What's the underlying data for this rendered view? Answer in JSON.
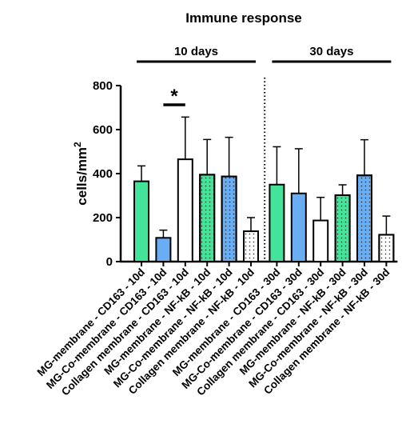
{
  "chart_data": {
    "type": "bar",
    "title": "Immune response",
    "ylabel": "cells/mm",
    "ylabel_superscript": "2",
    "xlabel": "",
    "ylim": [
      0,
      800
    ],
    "yticks": [
      0,
      200,
      400,
      600,
      800
    ],
    "grid": false,
    "legend": "none",
    "groups": [
      {
        "label": "10 days",
        "start": 0,
        "end": 5
      },
      {
        "label": "30 days",
        "start": 6,
        "end": 11
      }
    ],
    "categories": [
      "MG-membrane - CD163 - 10d",
      "MG-Co-membrane - CD163 - 10d",
      "Collagen membrane - CD163 - 10d",
      "MG-membrane - NF-kB - 10d",
      "MG-Co-membrane - NF-kB - 10d",
      "Collagen membrane - NF-kB - 10d",
      "MG-membrane - CD163 - 30d",
      "MG-Co-membrane - CD163 - 30d",
      "Collagen membrane - CD163 - 30d",
      "MG-membrane - NF-kB - 30d",
      "MG-Co-membrane - NF-kB - 30d",
      "Collagen membrane - NF-kB - 30d"
    ],
    "values": [
      365,
      108,
      465,
      395,
      387,
      138,
      350,
      310,
      187,
      302,
      392,
      122
    ],
    "errors": [
      70,
      35,
      192,
      160,
      178,
      62,
      172,
      203,
      105,
      47,
      162,
      85
    ],
    "fills": [
      "#44e39a",
      "#69aef3",
      "#ffffff",
      "#44e39a",
      "#69aef3",
      "#ffffff",
      "#44e39a",
      "#69aef3",
      "#ffffff",
      "#44e39a",
      "#69aef3",
      "#ffffff"
    ],
    "dotted": [
      false,
      false,
      false,
      true,
      true,
      true,
      false,
      false,
      false,
      true,
      true,
      true
    ],
    "significance": [
      {
        "from": 1,
        "to": 2,
        "label": "*"
      }
    ]
  }
}
